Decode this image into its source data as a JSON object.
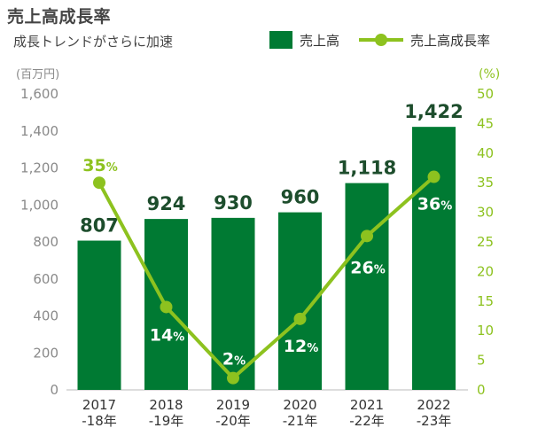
{
  "title": "売上高成長率",
  "subtitle": "成長トレンドがさらに加速",
  "legend": {
    "bar_label": "売上高",
    "line_label": "売上高成長率"
  },
  "colors": {
    "bar": "#007a33",
    "line": "#8dc21f",
    "bar_label_text": "#1d4d2c"
  },
  "chart_data": {
    "type": "bar",
    "categories": [
      [
        "2017",
        "-18年"
      ],
      [
        "2018",
        "-19年"
      ],
      [
        "2019",
        "-20年"
      ],
      [
        "2020",
        "-21年"
      ],
      [
        "2021",
        "-22年"
      ],
      [
        "2022",
        "-23年"
      ]
    ],
    "series": [
      {
        "name": "売上高",
        "type": "bar",
        "axis": "left",
        "values": [
          807,
          924,
          930,
          960,
          1118,
          1422
        ],
        "labels": [
          "807",
          "924",
          "930",
          "960",
          "1,118",
          "1,422"
        ]
      },
      {
        "name": "売上高成長率",
        "type": "line",
        "axis": "right",
        "values": [
          35,
          14,
          2,
          12,
          26,
          36
        ],
        "label_suffix": "%"
      }
    ],
    "y_left": {
      "unit": "(百万円)",
      "ylim": [
        0,
        1600
      ],
      "ticks": [
        "0",
        "200",
        "400",
        "600",
        "800",
        "1,000",
        "1,200",
        "1,400",
        "1,600"
      ]
    },
    "y_right": {
      "unit": "(%)",
      "ylim": [
        0,
        50
      ],
      "ticks": [
        "0",
        "5",
        "10",
        "15",
        "20",
        "25",
        "30",
        "35",
        "40",
        "45",
        "50"
      ]
    },
    "grid": false,
    "legend_position": "top-right"
  }
}
